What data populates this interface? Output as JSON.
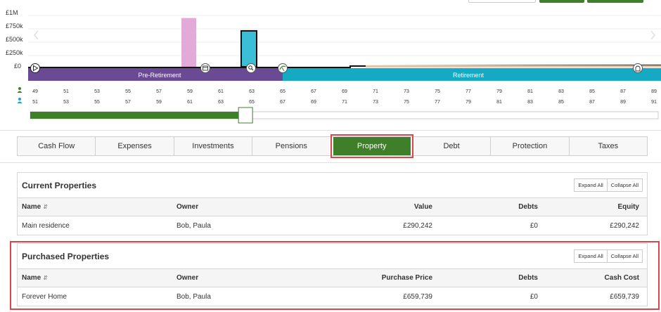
{
  "chart_data": {
    "type": "bar",
    "y_tick_labels": [
      "£1M",
      "£750k",
      "£500k",
      "£250k",
      "£0"
    ],
    "ylim": [
      0,
      1000000
    ],
    "bars": [
      {
        "name": "pension-lump-sum",
        "age_index": 5,
        "value": 950000,
        "color": "#e2aad8"
      },
      {
        "name": "property-purchase",
        "age_index": 7,
        "value": 700000,
        "color": "#3bbfd6"
      }
    ],
    "phases": [
      {
        "label": "Pre-Retirement",
        "color": "#6a4a94"
      },
      {
        "label": "Retirement",
        "color": "#16a9c4"
      }
    ],
    "ages_primary": [
      "49",
      "51",
      "53",
      "55",
      "57",
      "59",
      "61",
      "63",
      "65",
      "67",
      "69",
      "71",
      "73",
      "75",
      "77",
      "79",
      "81",
      "83",
      "85",
      "87",
      "89"
    ],
    "ages_secondary": [
      "51",
      "53",
      "55",
      "57",
      "59",
      "61",
      "63",
      "65",
      "67",
      "69",
      "71",
      "73",
      "75",
      "77",
      "79",
      "81",
      "83",
      "85",
      "87",
      "89",
      "91"
    ],
    "timeline_progress": 0.335
  },
  "icons": [
    "play-icon",
    "calendar-icon",
    "search-icon",
    "umbrella-icon",
    "headstone-icon",
    "person-icon",
    "prev-arrow-icon",
    "next-arrow-icon"
  ],
  "tabs": [
    {
      "label": "Cash Flow",
      "active": false
    },
    {
      "label": "Expenses",
      "active": false
    },
    {
      "label": "Investments",
      "active": false
    },
    {
      "label": "Pensions",
      "active": false
    },
    {
      "label": "Property",
      "active": true
    },
    {
      "label": "Debt",
      "active": false
    },
    {
      "label": "Protection",
      "active": false
    },
    {
      "label": "Taxes",
      "active": false
    }
  ],
  "current_properties": {
    "title": "Current Properties",
    "expand_all": "Expand All",
    "collapse_all": "Collapse All",
    "columns": [
      "Name",
      "Owner",
      "Value",
      "Debts",
      "Equity"
    ],
    "rows": [
      {
        "name": "Main residence",
        "owner": "Bob, Paula",
        "value": "£290,242",
        "debts": "£0",
        "equity": "£290,242"
      }
    ]
  },
  "purchased_properties": {
    "title": "Purchased Properties",
    "expand_all": "Expand All",
    "collapse_all": "Collapse All",
    "columns": [
      "Name",
      "Owner",
      "Purchase Price",
      "Debts",
      "Cash Cost"
    ],
    "rows": [
      {
        "name": "Forever Home",
        "owner": "Bob, Paula",
        "price": "£659,739",
        "debts": "£0",
        "cash_cost": "£659,739"
      }
    ]
  },
  "colors": {
    "accent_green": "#3f7f2a",
    "highlight_red": "#d9464b",
    "pre_retirement": "#6a4a94",
    "retirement": "#16a9c4"
  }
}
